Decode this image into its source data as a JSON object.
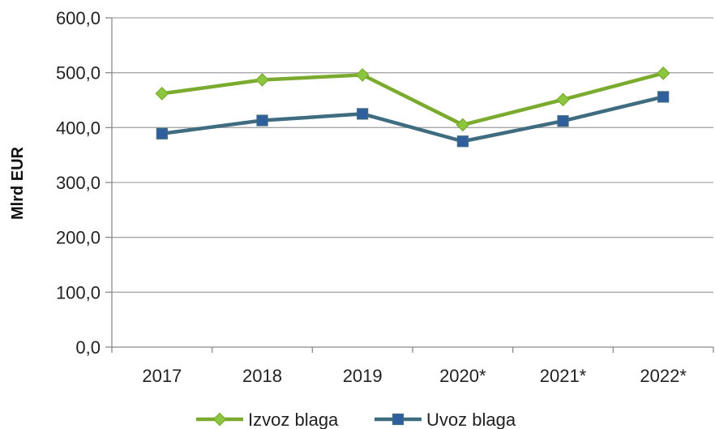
{
  "chart_data": {
    "type": "line",
    "categories": [
      "2017",
      "2018",
      "2019",
      "2020*",
      "2021*",
      "2022*"
    ],
    "series": [
      {
        "name": "Izvoz blaga",
        "values": [
          462,
          487,
          496,
          405,
          451,
          499
        ],
        "color": "#7aaa2e",
        "marker_color": "#8cc63f",
        "marker": "diamond"
      },
      {
        "name": "Uvoz blaga",
        "values": [
          389,
          413,
          425,
          375,
          412,
          456
        ],
        "color": "#3f6c80",
        "marker_color": "#2f5f9e",
        "marker": "square"
      }
    ],
    "ylabel": "Mlrd EUR",
    "xlabel": "",
    "ylim": [
      0,
      600
    ],
    "yticks": [
      "0,0",
      "100,0",
      "200,0",
      "300,0",
      "400,0",
      "500,0",
      "600,0"
    ],
    "grid": true,
    "legend_position": "bottom"
  }
}
